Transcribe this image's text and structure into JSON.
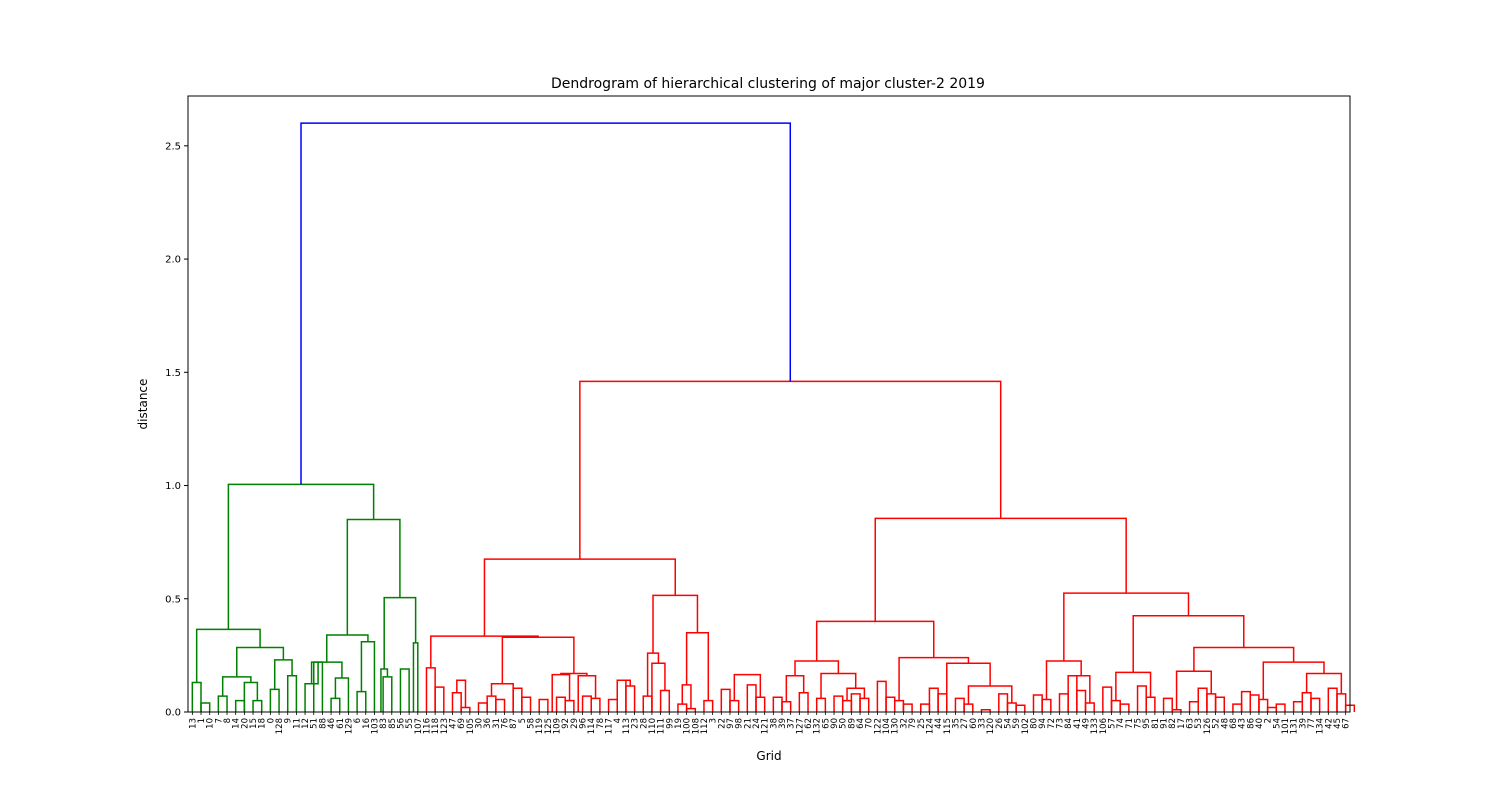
{
  "chart_data": {
    "type": "dendrogram",
    "title": "Dendrogram of hierarchical clustering of major cluster-2 2019",
    "xlabel": "Grid",
    "ylabel": "distance",
    "ylim": [
      0,
      2.72
    ],
    "y_ticks": [
      "0.0",
      "0.5",
      "1.0",
      "1.5",
      "2.0",
      "2.5"
    ],
    "grid": false,
    "colors": {
      "root": "#0000ff",
      "cluster_1": "#008000",
      "cluster_2": "#ff0000"
    },
    "leaves": [
      "13",
      "1",
      "10",
      "7",
      "8",
      "14",
      "20",
      "15",
      "18",
      "0",
      "128",
      "9",
      "11",
      "12",
      "51",
      "88",
      "46",
      "61",
      "129",
      "6",
      "16",
      "103",
      "83",
      "85",
      "56",
      "55",
      "107",
      "116",
      "118",
      "123",
      "47",
      "69",
      "105",
      "30",
      "36",
      "31",
      "76",
      "87",
      "5",
      "58",
      "119",
      "125",
      "109",
      "92",
      "29",
      "96",
      "114",
      "78",
      "117",
      "4",
      "113",
      "23",
      "28",
      "110",
      "111",
      "99",
      "19",
      "100",
      "108",
      "112",
      "3",
      "22",
      "97",
      "98",
      "21",
      "24",
      "121",
      "38",
      "39",
      "37",
      "127",
      "62",
      "132",
      "65",
      "90",
      "50",
      "89",
      "64",
      "70",
      "122",
      "104",
      "130",
      "32",
      "79",
      "25",
      "124",
      "44",
      "115",
      "35",
      "27",
      "60",
      "33",
      "120",
      "26",
      "54",
      "59",
      "102",
      "80",
      "94",
      "72",
      "73",
      "84",
      "41",
      "49",
      "133",
      "106",
      "57",
      "74",
      "71",
      "75",
      "95",
      "81",
      "91",
      "82",
      "17",
      "63",
      "53",
      "126",
      "52",
      "48",
      "68",
      "43",
      "86",
      "40",
      "2",
      "54",
      "101",
      "131",
      "39",
      "77",
      "134",
      "42",
      "45",
      "67"
    ],
    "merges": [
      {
        "l": 0,
        "r": 1,
        "h": 0.13
      },
      {
        "l": 1,
        "r": 2,
        "h": 0.04
      },
      {
        "l": 3,
        "r": 4,
        "h": 0.07
      },
      {
        "l": 5,
        "r": 6,
        "h": 0.05
      },
      {
        "l": 7,
        "r": 8,
        "h": 0.05
      },
      {
        "l": 6,
        "r": 7.5,
        "h": 0.13
      },
      {
        "l": 3.5,
        "r": 6.75,
        "h": 0.155
      },
      {
        "l": 9,
        "r": 10,
        "h": 0.1
      },
      {
        "l": 11,
        "r": 12,
        "h": 0.16
      },
      {
        "l": 9.5,
        "r": 11.5,
        "h": 0.23
      },
      {
        "l": 5.125,
        "r": 10.5,
        "h": 0.285
      },
      {
        "l": 0.5,
        "r": 7.8125,
        "h": 0.365
      },
      {
        "l": 14,
        "r": 15,
        "h": 0.22
      },
      {
        "l": 16,
        "r": 17,
        "h": 0.06
      },
      {
        "l": 16.5,
        "r": 18,
        "h": 0.15
      },
      {
        "l": 13,
        "r": 14.5,
        "h": 0.125
      },
      {
        "l": 13.75,
        "r": 17.25,
        "h": 0.22
      },
      {
        "l": 19,
        "r": 20,
        "h": 0.09
      },
      {
        "l": 19.5,
        "r": 21,
        "h": 0.31
      },
      {
        "l": 15.5,
        "r": 20.25,
        "h": 0.34
      },
      {
        "l": 22,
        "r": 23,
        "h": 0.155
      },
      {
        "l": 21.75,
        "r": 22.5,
        "h": 0.19
      },
      {
        "l": 24,
        "r": 25,
        "h": 0.19
      },
      {
        "l": 25.5,
        "r": 26,
        "h": 0.305
      },
      {
        "l": 22.125,
        "r": 25.75,
        "h": 0.505
      },
      {
        "l": 17.875,
        "r": 23.9375,
        "h": 0.85
      },
      {
        "l": 4.15625,
        "r": 20.90625,
        "h": 1.005
      },
      {
        "l": 27,
        "r": 28,
        "h": 0.195
      },
      {
        "l": 28,
        "r": 29,
        "h": 0.11
      },
      {
        "l": 30,
        "r": 31,
        "h": 0.085
      },
      {
        "l": 31,
        "r": 32,
        "h": 0.02
      },
      {
        "l": 30.5,
        "r": 31.5,
        "h": 0.14
      },
      {
        "l": 33,
        "r": 34,
        "h": 0.04
      },
      {
        "l": 34,
        "r": 35,
        "h": 0.07
      },
      {
        "l": 35,
        "r": 36,
        "h": 0.055
      },
      {
        "l": 34.5,
        "r": 37,
        "h": 0.125
      },
      {
        "l": 37,
        "r": 38,
        "h": 0.105
      },
      {
        "l": 38,
        "r": 39,
        "h": 0.065
      },
      {
        "l": 40,
        "r": 41,
        "h": 0.055
      },
      {
        "l": 42,
        "r": 43,
        "h": 0.065
      },
      {
        "l": 43,
        "r": 44,
        "h": 0.05
      },
      {
        "l": 41.5,
        "r": 43.5,
        "h": 0.165
      },
      {
        "l": 45,
        "r": 46,
        "h": 0.07
      },
      {
        "l": 46,
        "r": 47,
        "h": 0.06
      },
      {
        "l": 44.5,
        "r": 46.5,
        "h": 0.16
      },
      {
        "l": 42.5,
        "r": 45.5,
        "h": 0.17
      },
      {
        "l": 35.75,
        "r": 44,
        "h": 0.33
      },
      {
        "l": 27.5,
        "r": 39.875,
        "h": 0.335
      },
      {
        "l": 48,
        "r": 49,
        "h": 0.055
      },
      {
        "l": 49,
        "r": 50,
        "h": 0.14
      },
      {
        "l": 50,
        "r": 51,
        "h": 0.115
      },
      {
        "l": 49.5,
        "r": 50.5,
        "h": 0.14
      },
      {
        "l": 52,
        "r": 53,
        "h": 0.07
      },
      {
        "l": 54,
        "r": 55,
        "h": 0.095
      },
      {
        "l": 53,
        "r": 54.5,
        "h": 0.215
      },
      {
        "l": 52.5,
        "r": 53.75,
        "h": 0.26
      },
      {
        "l": 56,
        "r": 57,
        "h": 0.035
      },
      {
        "l": 57,
        "r": 58,
        "h": 0.015
      },
      {
        "l": 56.5,
        "r": 57.5,
        "h": 0.12
      },
      {
        "l": 59,
        "r": 60,
        "h": 0.05
      },
      {
        "l": 57,
        "r": 59.5,
        "h": 0.35
      },
      {
        "l": 53.125,
        "r": 58.25,
        "h": 0.515
      },
      {
        "l": 33.6875,
        "r": 55.6875,
        "h": 0.675
      },
      {
        "l": 61,
        "r": 62,
        "h": 0.1
      },
      {
        "l": 62,
        "r": 63,
        "h": 0.05
      },
      {
        "l": 64,
        "r": 65,
        "h": 0.12
      },
      {
        "l": 65,
        "r": 66,
        "h": 0.065
      },
      {
        "l": 62.5,
        "r": 65.5,
        "h": 0.165
      },
      {
        "l": 67,
        "r": 68,
        "h": 0.065
      },
      {
        "l": 68,
        "r": 69,
        "h": 0.045
      },
      {
        "l": 70,
        "r": 71,
        "h": 0.085
      },
      {
        "l": 68.5,
        "r": 70.5,
        "h": 0.16
      },
      {
        "l": 72,
        "r": 73,
        "h": 0.06
      },
      {
        "l": 74,
        "r": 75,
        "h": 0.07
      },
      {
        "l": 75,
        "r": 76,
        "h": 0.05
      },
      {
        "l": 76,
        "r": 77,
        "h": 0.08
      },
      {
        "l": 77,
        "r": 78,
        "h": 0.06
      },
      {
        "l": 75.5,
        "r": 77.5,
        "h": 0.105
      },
      {
        "l": 72.5,
        "r": 76.5,
        "h": 0.17
      },
      {
        "l": 69.5,
        "r": 74.5,
        "h": 0.225
      },
      {
        "l": 79,
        "r": 80,
        "h": 0.135
      },
      {
        "l": 80,
        "r": 81,
        "h": 0.065
      },
      {
        "l": 81,
        "r": 82,
        "h": 0.05
      },
      {
        "l": 82,
        "r": 83,
        "h": 0.035
      },
      {
        "l": 84,
        "r": 85,
        "h": 0.035
      },
      {
        "l": 85,
        "r": 86,
        "h": 0.105
      },
      {
        "l": 86,
        "r": 87,
        "h": 0.08
      },
      {
        "l": 88,
        "r": 89,
        "h": 0.06
      },
      {
        "l": 89,
        "r": 90,
        "h": 0.035
      },
      {
        "l": 91,
        "r": 92,
        "h": 0.01
      },
      {
        "l": 93,
        "r": 94,
        "h": 0.08
      },
      {
        "l": 94,
        "r": 95,
        "h": 0.04
      },
      {
        "l": 95,
        "r": 96,
        "h": 0.03
      },
      {
        "l": 89.5,
        "r": 94.5,
        "h": 0.115
      },
      {
        "l": 87,
        "r": 92,
        "h": 0.215
      },
      {
        "l": 81.5,
        "r": 89.5,
        "h": 0.24
      },
      {
        "l": 72,
        "r": 85.5,
        "h": 0.4
      },
      {
        "l": 97,
        "r": 98,
        "h": 0.075
      },
      {
        "l": 98,
        "r": 99,
        "h": 0.055
      },
      {
        "l": 100,
        "r": 101,
        "h": 0.08
      },
      {
        "l": 101,
        "r": 102,
        "h": 0.16
      },
      {
        "l": 102,
        "r": 103,
        "h": 0.095
      },
      {
        "l": 103,
        "r": 104,
        "h": 0.04
      },
      {
        "l": 101.5,
        "r": 103.5,
        "h": 0.16
      },
      {
        "l": 98.5,
        "r": 102.5,
        "h": 0.225
      },
      {
        "l": 105,
        "r": 106,
        "h": 0.11
      },
      {
        "l": 106,
        "r": 107,
        "h": 0.05
      },
      {
        "l": 107,
        "r": 108,
        "h": 0.035
      },
      {
        "l": 109,
        "r": 110,
        "h": 0.115
      },
      {
        "l": 110,
        "r": 111,
        "h": 0.065
      },
      {
        "l": 106.5,
        "r": 110.5,
        "h": 0.175
      },
      {
        "l": 112,
        "r": 113,
        "h": 0.06
      },
      {
        "l": 113,
        "r": 114,
        "h": 0.01
      },
      {
        "l": 115,
        "r": 116,
        "h": 0.045
      },
      {
        "l": 116,
        "r": 117,
        "h": 0.105
      },
      {
        "l": 117,
        "r": 118,
        "h": 0.08
      },
      {
        "l": 118,
        "r": 119,
        "h": 0.065
      },
      {
        "l": 113.5,
        "r": 117.5,
        "h": 0.18
      },
      {
        "l": 120,
        "r": 121,
        "h": 0.035
      },
      {
        "l": 121,
        "r": 122,
        "h": 0.09
      },
      {
        "l": 122,
        "r": 123,
        "h": 0.075
      },
      {
        "l": 123,
        "r": 124,
        "h": 0.055
      },
      {
        "l": 124,
        "r": 125,
        "h": 0.02
      },
      {
        "l": 125,
        "r": 126,
        "h": 0.035
      },
      {
        "l": 127,
        "r": 128,
        "h": 0.045
      },
      {
        "l": 128,
        "r": 129,
        "h": 0.085
      },
      {
        "l": 129,
        "r": 130,
        "h": 0.06
      },
      {
        "l": 131,
        "r": 132,
        "h": 0.105
      },
      {
        "l": 132,
        "r": 133,
        "h": 0.08
      },
      {
        "l": 133,
        "r": 134,
        "h": 0.03
      },
      {
        "l": 128.5,
        "r": 132.5,
        "h": 0.17
      },
      {
        "l": 123.5,
        "r": 130.5,
        "h": 0.22
      },
      {
        "l": 115.5,
        "r": 127,
        "h": 0.285
      },
      {
        "l": 108.5,
        "r": 121.25,
        "h": 0.425
      },
      {
        "l": 100.5,
        "r": 114.875,
        "h": 0.525
      },
      {
        "l": 78.75,
        "r": 107.6875,
        "h": 0.855
      },
      {
        "l": 44.6875,
        "r": 93.21875,
        "h": 1.46
      },
      {
        "l": 12.53125,
        "r": 68.953125,
        "h": 2.6
      }
    ]
  }
}
